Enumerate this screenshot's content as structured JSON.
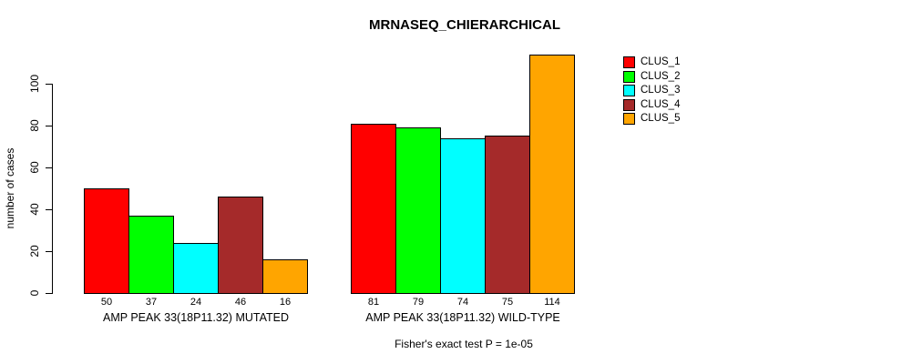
{
  "title": "MRNASEQ_CHIERARCHICAL",
  "chart_data": {
    "type": "bar",
    "title": "MRNASEQ_CHIERARCHICAL",
    "ylabel": "number of cases",
    "xlabel": "",
    "ylim": [
      0,
      115
    ],
    "yticks": [
      0,
      20,
      40,
      60,
      80,
      100
    ],
    "grid": false,
    "legend_position": "top-right",
    "bar_border_color": "#000000",
    "value_labels_shown": true,
    "categories": [
      "AMP PEAK 33(18P11.32) MUTATED",
      "AMP PEAK 33(18P11.32) WILD-TYPE"
    ],
    "series": [
      {
        "name": "CLUS_1",
        "color": "#ff0000",
        "values": [
          50,
          81
        ]
      },
      {
        "name": "CLUS_2",
        "color": "#00ff00",
        "values": [
          37,
          79
        ]
      },
      {
        "name": "CLUS_3",
        "color": "#00ffff",
        "values": [
          24,
          74
        ]
      },
      {
        "name": "CLUS_4",
        "color": "#a52a2a",
        "values": [
          46,
          75
        ]
      },
      {
        "name": "CLUS_5",
        "color": "#ffa500",
        "values": [
          16,
          114
        ]
      }
    ],
    "caption": "Fisher's exact test P = 1e-05"
  }
}
